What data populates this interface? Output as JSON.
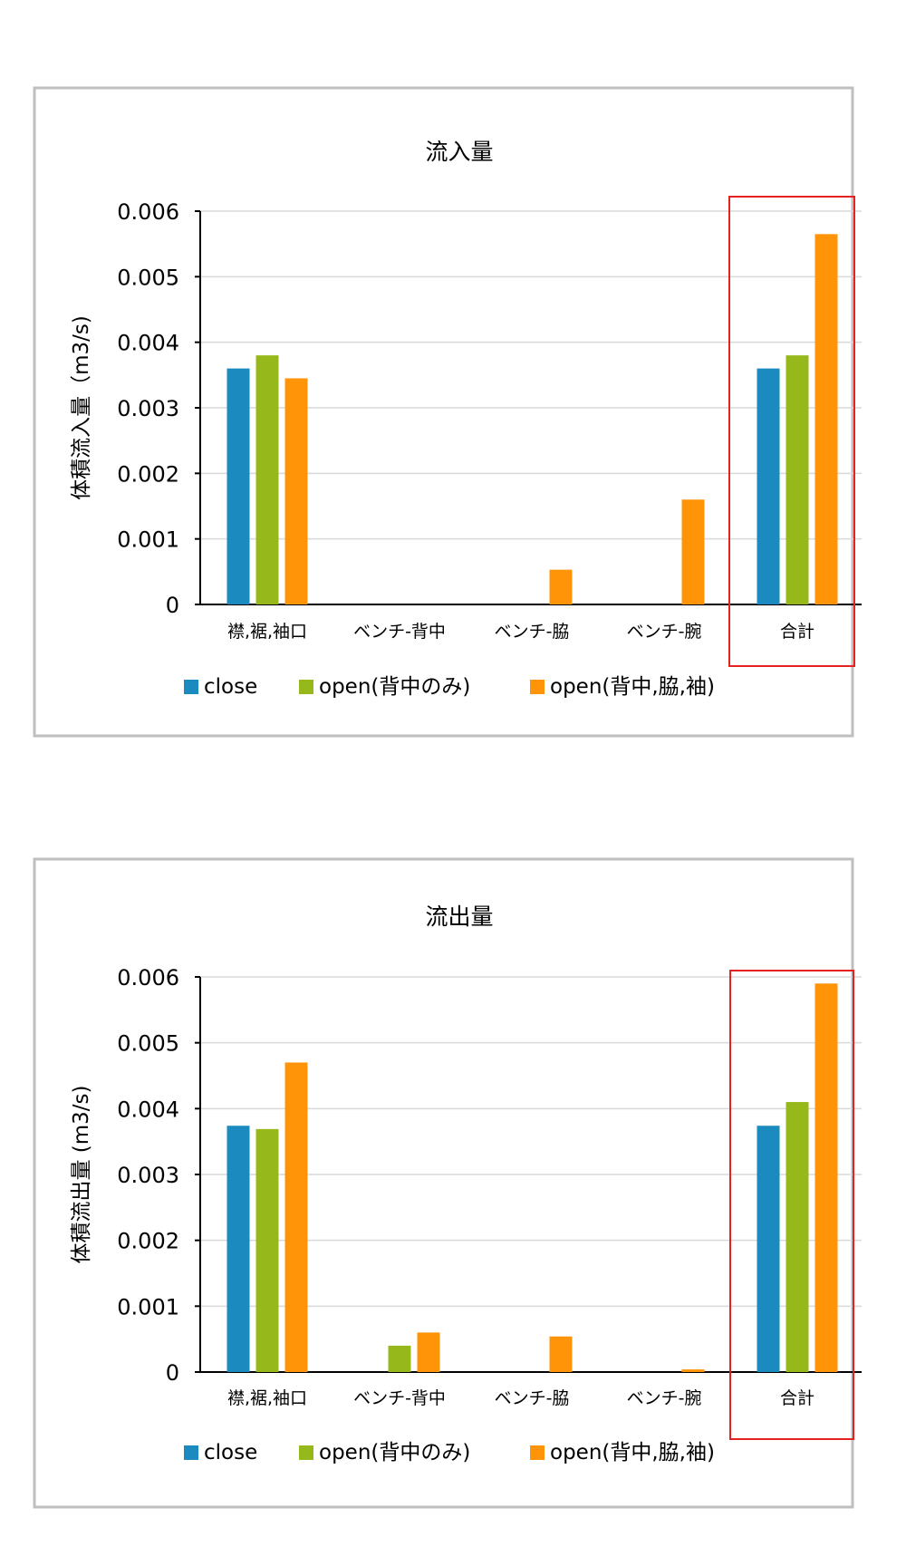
{
  "chart_data": [
    {
      "type": "bar",
      "title": "流入量",
      "xlabel": "",
      "ylabel": "体積流入量（m3/s)",
      "categories": [
        "襟,裾,袖口",
        "ベンチ-背中",
        "ベンチ-脇",
        "ベンチ-腕",
        "合計"
      ],
      "series": [
        {
          "name": "close",
          "values": [
            0.0036,
            0,
            0,
            0,
            0.0036
          ]
        },
        {
          "name": "open(背中のみ)",
          "values": [
            0.0038,
            0,
            0,
            0,
            0.0038
          ]
        },
        {
          "name": "open(背中,脇,袖)",
          "values": [
            0.00345,
            0,
            0.00053,
            0.0016,
            0.00565
          ]
        }
      ],
      "ylim": [
        0,
        0.006
      ],
      "yticks": [
        "0",
        "0.001",
        "0.002",
        "0.003",
        "0.004",
        "0.005",
        "0.006"
      ],
      "grid": true,
      "legend": "bottom",
      "highlight_category": "合計",
      "colors": {
        "close": "#1b8bbf",
        "open(背中のみ)": "#97b81a",
        "open(背中,脇,袖)": "#ff9408",
        "highlight": "#e52220",
        "grid": "#d9d9d9",
        "frame": "#bfbfbf"
      }
    },
    {
      "type": "bar",
      "title": "流出量",
      "xlabel": "",
      "ylabel": "体積流出量 (m3/s)",
      "categories": [
        "襟,裾,袖口",
        "ベンチ-背中",
        "ベンチ-脇",
        "ベンチ-腕",
        "合計"
      ],
      "series": [
        {
          "name": "close",
          "values": [
            0.00374,
            0,
            0,
            0,
            0.00374
          ]
        },
        {
          "name": "open(背中のみ)",
          "values": [
            0.00369,
            0.0004,
            0,
            0,
            0.0041
          ]
        },
        {
          "name": "open(背中,脇,袖)",
          "values": [
            0.0047,
            0.0006,
            0.00054,
            4e-05,
            0.0059
          ]
        }
      ],
      "ylim": [
        0,
        0.006
      ],
      "yticks": [
        "0",
        "0.001",
        "0.002",
        "0.003",
        "0.004",
        "0.005",
        "0.006"
      ],
      "grid": true,
      "legend": "bottom",
      "highlight_category": "合計",
      "colors": {
        "close": "#1b8bbf",
        "open(背中のみ)": "#97b81a",
        "open(背中,脇,袖)": "#ff9408",
        "highlight": "#e52220",
        "grid": "#d9d9d9",
        "frame": "#bfbfbf"
      }
    }
  ]
}
